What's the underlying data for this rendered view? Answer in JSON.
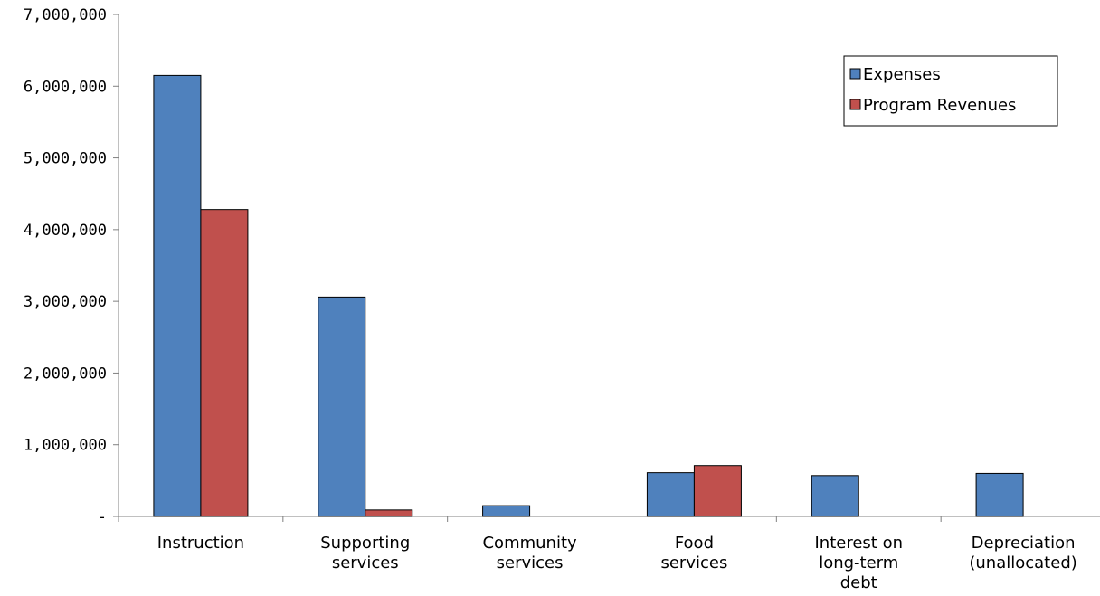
{
  "chart_data": {
    "type": "bar",
    "title": "",
    "xlabel": "",
    "ylabel": "",
    "categories": [
      [
        "Instruction"
      ],
      [
        "Supporting",
        "services"
      ],
      [
        "Community",
        "services"
      ],
      [
        "Food",
        "services"
      ],
      [
        "Interest on",
        "long-term",
        "debt"
      ],
      [
        "Depreciation",
        "(unallocated)"
      ]
    ],
    "series": [
      {
        "name": "Expenses",
        "color": "#4F81BD",
        "values": [
          6150000,
          3060000,
          150000,
          610000,
          570000,
          600000
        ]
      },
      {
        "name": "Program Revenues",
        "color": "#C0504D",
        "values": [
          4280000,
          90000,
          0,
          710000,
          0,
          0
        ]
      }
    ],
    "ylim": [
      0,
      7000000
    ],
    "yticks": [
      0,
      1000000,
      2000000,
      3000000,
      4000000,
      5000000,
      6000000,
      7000000
    ],
    "ytick_labels": [
      "-",
      "1,000,000",
      "2,000,000",
      "3,000,000",
      "4,000,000",
      "5,000,000",
      "6,000,000",
      "7,000,000"
    ],
    "grid": false,
    "legend": "top-right"
  }
}
